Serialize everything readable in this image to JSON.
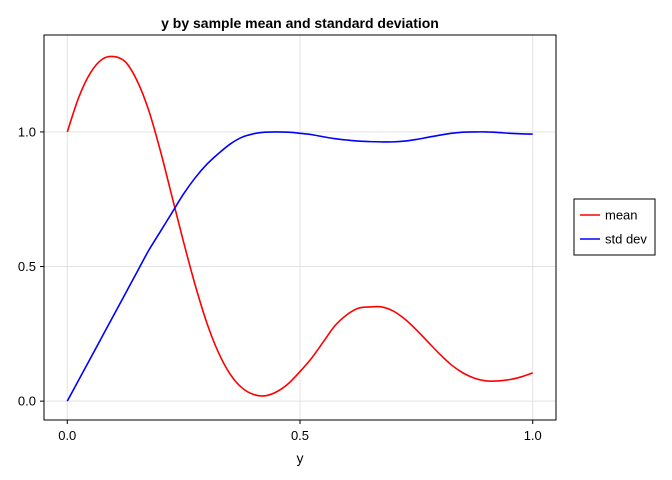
{
  "chart_data": {
    "type": "line",
    "title": "y by sample mean and standard deviation",
    "xlabel": "y",
    "ylabel": "",
    "xlim": [
      -0.05,
      1.05
    ],
    "ylim": [
      -0.07,
      1.36
    ],
    "xticks": [
      0.0,
      0.5,
      1.0
    ],
    "xtick_labels": [
      "0.0",
      "0.5",
      "1.0"
    ],
    "yticks": [
      0.0,
      0.5,
      1.0
    ],
    "ytick_labels": [
      "0.0",
      "0.5",
      "1.0"
    ],
    "grid": true,
    "legend_position": "right",
    "series": [
      {
        "name": "mean",
        "color": "#ff0000",
        "x": [
          0.0,
          0.025,
          0.05,
          0.075,
          0.1,
          0.125,
          0.15,
          0.175,
          0.2,
          0.225,
          0.25,
          0.275,
          0.3,
          0.325,
          0.35,
          0.375,
          0.4,
          0.425,
          0.45,
          0.475,
          0.5,
          0.525,
          0.55,
          0.575,
          0.6,
          0.625,
          0.65,
          0.675,
          0.7,
          0.725,
          0.75,
          0.775,
          0.8,
          0.825,
          0.85,
          0.875,
          0.9,
          0.925,
          0.95,
          0.975,
          1.0
        ],
        "y": [
          1.0,
          1.13,
          1.22,
          1.27,
          1.28,
          1.26,
          1.19,
          1.08,
          0.93,
          0.76,
          0.59,
          0.43,
          0.29,
          0.18,
          0.1,
          0.05,
          0.025,
          0.02,
          0.035,
          0.065,
          0.11,
          0.16,
          0.22,
          0.28,
          0.32,
          0.345,
          0.35,
          0.35,
          0.335,
          0.305,
          0.265,
          0.22,
          0.175,
          0.135,
          0.105,
          0.085,
          0.075,
          0.075,
          0.08,
          0.09,
          0.105
        ]
      },
      {
        "name": "std dev",
        "color": "#0000ff",
        "x": [
          0.0,
          0.025,
          0.05,
          0.075,
          0.1,
          0.125,
          0.15,
          0.175,
          0.2,
          0.225,
          0.25,
          0.275,
          0.3,
          0.325,
          0.35,
          0.375,
          0.4,
          0.425,
          0.45,
          0.475,
          0.5,
          0.525,
          0.55,
          0.575,
          0.6,
          0.625,
          0.65,
          0.675,
          0.7,
          0.725,
          0.75,
          0.775,
          0.8,
          0.825,
          0.85,
          0.875,
          0.9,
          0.925,
          0.95,
          0.975,
          1.0
        ],
        "y": [
          0.0,
          0.08,
          0.16,
          0.24,
          0.32,
          0.4,
          0.48,
          0.56,
          0.63,
          0.7,
          0.77,
          0.83,
          0.88,
          0.92,
          0.955,
          0.98,
          0.993,
          0.999,
          1.0,
          0.999,
          0.995,
          0.99,
          0.982,
          0.975,
          0.97,
          0.966,
          0.964,
          0.963,
          0.963,
          0.966,
          0.972,
          0.98,
          0.988,
          0.995,
          0.999,
          1.0,
          1.0,
          0.998,
          0.995,
          0.993,
          0.992
        ]
      }
    ]
  }
}
